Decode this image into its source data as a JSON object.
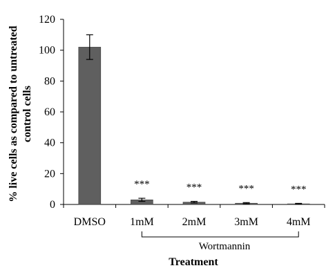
{
  "chart_data": {
    "type": "bar",
    "categories": [
      "DMSO",
      "1mM",
      "2mM",
      "3mM",
      "4mM"
    ],
    "values": [
      102,
      3,
      1.5,
      0.8,
      0.4
    ],
    "errors": [
      8,
      1,
      0.5,
      0.4,
      0.3
    ],
    "significance": [
      "",
      "***",
      "***",
      "***",
      "***"
    ],
    "ylim": [
      0,
      120
    ],
    "yticks": [
      0,
      20,
      40,
      60,
      80,
      100,
      120
    ],
    "xlabel": "Treatment",
    "ylabel_line1": "% live cells as compared to untreated",
    "ylabel_line2": "control cells",
    "group_label": "Wortmannin",
    "group_categories": [
      "1mM",
      "4mM"
    ],
    "bar_color": "#5f5f5f",
    "grid": false,
    "legend": "none"
  }
}
